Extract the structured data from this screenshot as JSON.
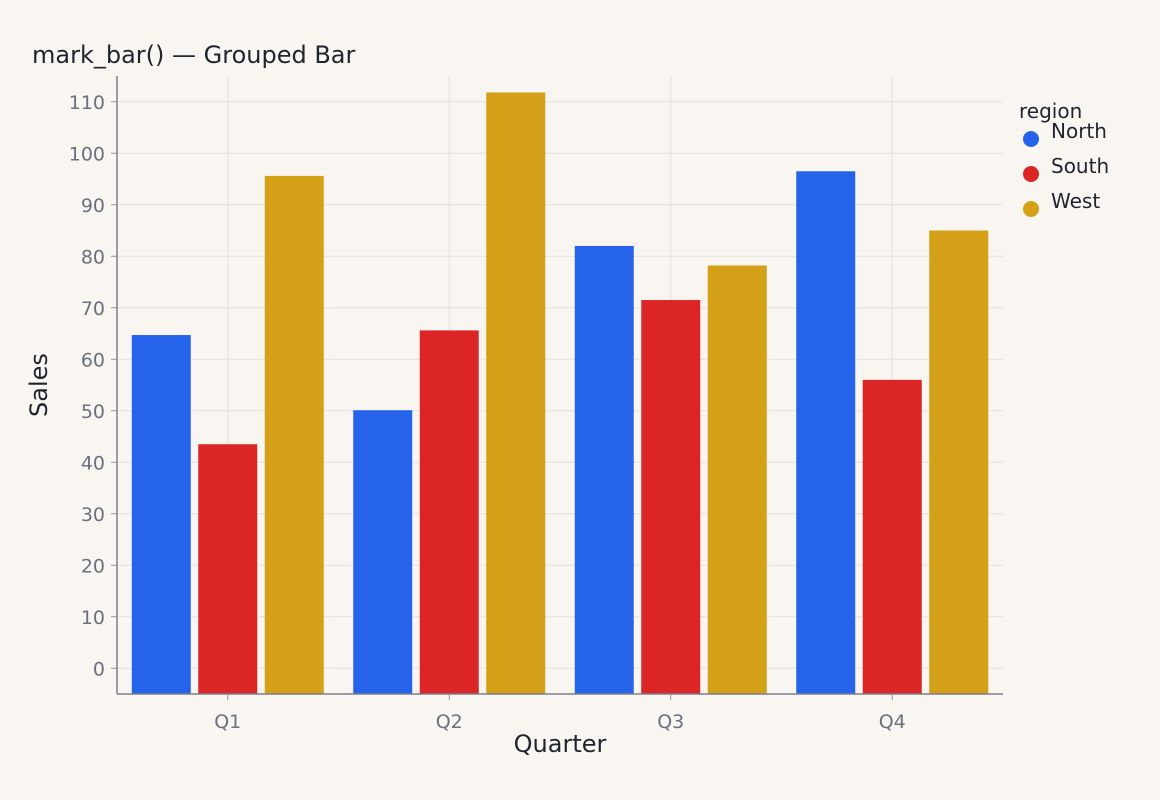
{
  "chart_data": {
    "type": "bar",
    "title": "mark_bar() — Grouped Bar",
    "xlabel": "Quarter",
    "ylabel": "Sales",
    "categories": [
      "Q1",
      "Q2",
      "Q3",
      "Q4"
    ],
    "ylim": [
      -5,
      115
    ],
    "yticks": [
      0,
      10,
      20,
      30,
      40,
      50,
      60,
      70,
      80,
      90,
      100,
      110
    ],
    "grid": true,
    "legend": {
      "title": "region",
      "placement": "right"
    },
    "series": [
      {
        "name": "North",
        "color": "#2563eb",
        "values": [
          64.7,
          50.1,
          82.0,
          96.5
        ]
      },
      {
        "name": "South",
        "color": "#dc2626",
        "values": [
          43.5,
          65.6,
          71.5,
          56.0
        ]
      },
      {
        "name": "West",
        "color": "#d4a017",
        "values": [
          95.6,
          111.8,
          78.2,
          85.0
        ]
      }
    ]
  }
}
